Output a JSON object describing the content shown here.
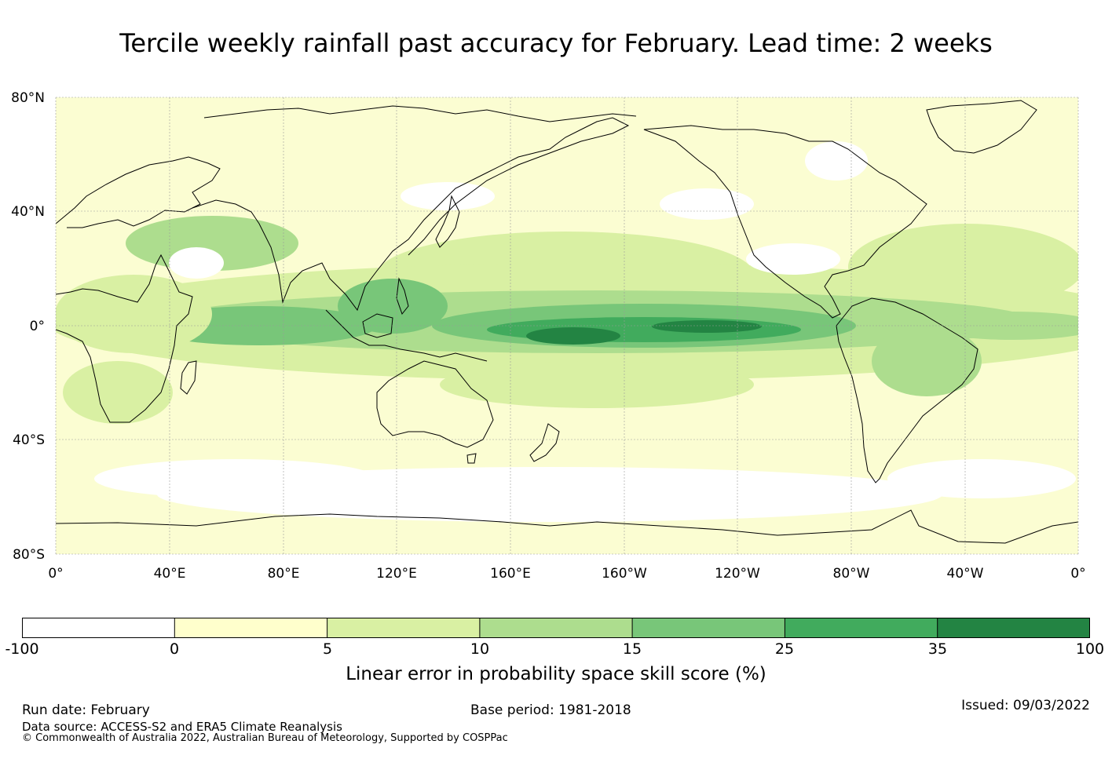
{
  "title": "Tercile weekly rainfall past accuracy for February. Lead time: 2 weeks",
  "map": {
    "lat_labels": [
      "80°N",
      "40°N",
      "0°",
      "40°S",
      "80°S"
    ],
    "lon_labels": [
      "0°",
      "40°E",
      "80°E",
      "120°E",
      "160°E",
      "160°W",
      "120°W",
      "80°W",
      "40°W",
      "0°"
    ],
    "colors": {
      "ocean_base": "#fbfdd2",
      "land_base": "#f4f9c4",
      "coast": "#000000",
      "grid": "#9a9a9a"
    }
  },
  "colorbar": {
    "bins": [
      {
        "from": "-100",
        "to": "0",
        "color": "#ffffff"
      },
      {
        "from": "0",
        "to": "5",
        "color": "#ffffcc"
      },
      {
        "from": "5",
        "to": "10",
        "color": "#d9f0a3"
      },
      {
        "from": "10",
        "to": "15",
        "color": "#addd8e"
      },
      {
        "from": "15",
        "to": "25",
        "color": "#78c679"
      },
      {
        "from": "25",
        "to": "35",
        "color": "#41ab5d"
      },
      {
        "from": "35",
        "to": "100",
        "color": "#238443"
      }
    ],
    "tick_labels": [
      "-100",
      "0",
      "5",
      "10",
      "15",
      "25",
      "35",
      "100"
    ],
    "label": "Linear error in probability space skill score (%)"
  },
  "footer": {
    "run_date": "Run date: February",
    "base_period": "Base period: 1981-2018",
    "issued": "Issued: 09/03/2022",
    "data_source": "Data source: ACCESS-S2 and ERA5 Climate Reanalysis",
    "copyright": "© Commonwealth of Australia 2022, Australian Bureau of Meteorology, Supported by COSPPac"
  }
}
